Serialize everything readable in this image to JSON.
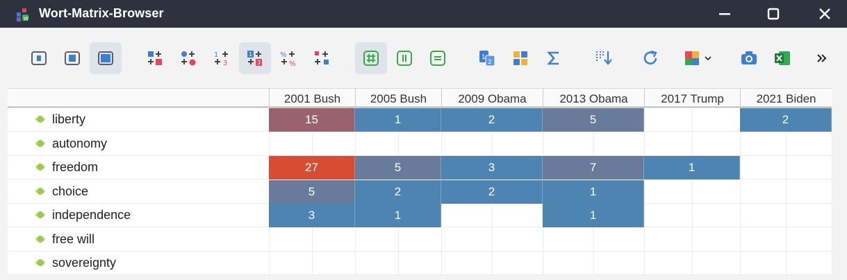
{
  "window": {
    "title": "Wort-Matrix-Browser",
    "controls": [
      "minimize",
      "maximize",
      "close"
    ]
  },
  "toolbar": {
    "buttons": [
      {
        "icon": "view-small-frame-icon",
        "active": false
      },
      {
        "icon": "view-medium-frame-icon",
        "active": false
      },
      {
        "icon": "view-large-frame-icon",
        "active": true
      },
      {
        "icon": "display-color-squares-icon",
        "active": false
      },
      {
        "icon": "display-circles-icon",
        "active": false
      },
      {
        "icon": "display-numbers-icon",
        "active": false
      },
      {
        "icon": "display-numbers-colored-icon",
        "active": true
      },
      {
        "icon": "display-percent-icon",
        "active": false
      },
      {
        "icon": "display-swap-icon",
        "active": false
      },
      {
        "icon": "hash-grid-icon",
        "active": true
      },
      {
        "icon": "columns-icon",
        "active": false
      },
      {
        "icon": "rows-icon",
        "active": false
      },
      {
        "icon": "document-codes-icon",
        "active": false
      },
      {
        "icon": "cluster-squares-icon",
        "active": false
      },
      {
        "icon": "sum-icon",
        "active": false
      },
      {
        "icon": "sort-icon",
        "active": false
      },
      {
        "icon": "refresh-icon",
        "active": false
      },
      {
        "icon": "color-scheme-dropdown-icon",
        "active": false
      },
      {
        "icon": "camera-icon",
        "active": false
      },
      {
        "icon": "excel-export-icon",
        "active": false
      },
      {
        "icon": "more-chevrons-icon",
        "active": false
      }
    ]
  },
  "matrix": {
    "columns": [
      "2001 Bush",
      "2005 Bush",
      "2009 Obama",
      "2013 Obama",
      "2017 Trump",
      "2021 Biden"
    ],
    "rows": [
      {
        "word": "liberty",
        "values": [
          15,
          1,
          2,
          5,
          null,
          2
        ]
      },
      {
        "word": "autonomy",
        "values": [
          null,
          null,
          null,
          null,
          null,
          null
        ]
      },
      {
        "word": "freedom",
        "values": [
          27,
          5,
          3,
          7,
          1,
          null
        ]
      },
      {
        "word": "choice",
        "values": [
          5,
          2,
          2,
          1,
          null,
          null
        ]
      },
      {
        "word": "independence",
        "values": [
          3,
          1,
          null,
          1,
          null,
          null
        ]
      },
      {
        "word": "free will",
        "values": [
          null,
          null,
          null,
          null,
          null,
          null
        ]
      },
      {
        "word": "sovereignty",
        "values": [
          null,
          null,
          null,
          null,
          null,
          null
        ]
      }
    ],
    "cell_colors": {
      "1": "#4e84b1",
      "2": "#4e84b1",
      "3": "#4e84b1",
      "5": "#697b9b",
      "7": "#697b9b",
      "15": "#98636f",
      "27": "#d94c34"
    },
    "bullet_color": "#9ccc4a"
  }
}
